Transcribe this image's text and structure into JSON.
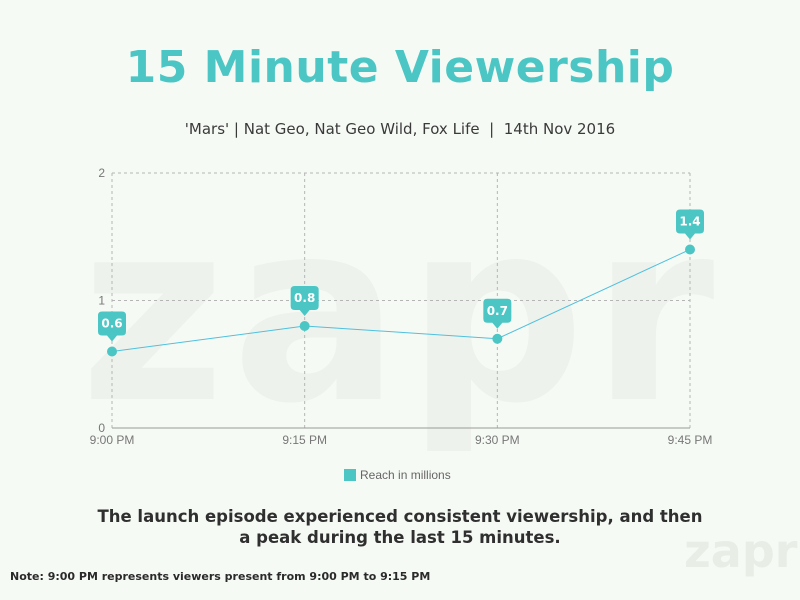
{
  "header": {
    "title": "15 Minute Viewership",
    "subtitle": "'Mars' | Nat Geo, Nat Geo Wild, Fox Life  |  14th Nov 2016"
  },
  "chart_data": {
    "type": "line",
    "categories": [
      "9:00 PM",
      "9:15 PM",
      "9:30 PM",
      "9:45 PM"
    ],
    "series": [
      {
        "name": "Reach in millions",
        "values": [
          0.6,
          0.8,
          0.7,
          1.4
        ],
        "color": "#4bc6c4"
      }
    ],
    "data_labels": [
      "0.6",
      "0.8",
      "0.7",
      "1.4"
    ],
    "ylim": [
      0,
      2
    ],
    "yticks": [
      "0",
      "1",
      "2"
    ],
    "grid": true,
    "legend": "bottom",
    "xlabel": "",
    "ylabel": ""
  },
  "colors": {
    "accent": "#4bc6c4",
    "line": "#4fc0de",
    "grid": "#b5b5b5"
  },
  "insight": "The launch episode experienced consistent viewership, and then a peak during the last 15 minutes.",
  "note": "Note: 9:00 PM represents viewers present from 9:00 PM to 9:15 PM",
  "watermark": {
    "text": "zapr",
    "logo": "zapr"
  }
}
